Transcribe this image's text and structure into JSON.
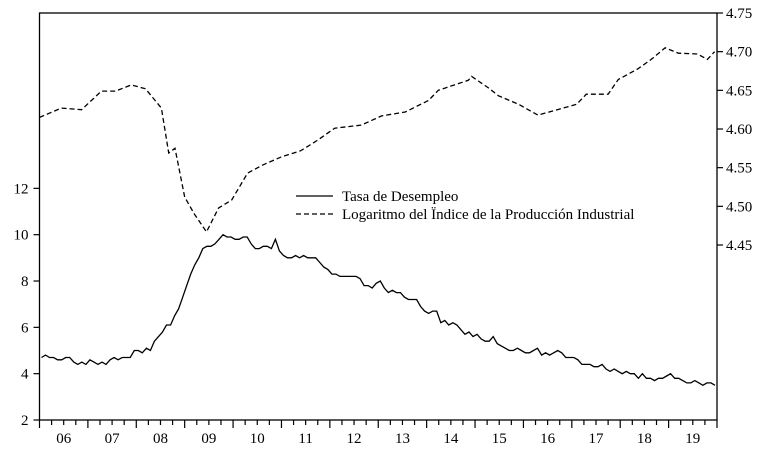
{
  "chart_data": {
    "type": "line",
    "title": "",
    "xlabel": "",
    "x_range": [
      2006.0,
      2020.0
    ],
    "x_tick_labels": [
      "06",
      "07",
      "08",
      "09",
      "10",
      "11",
      "12",
      "13",
      "14",
      "15",
      "16",
      "17",
      "18",
      "19"
    ],
    "left_axis": {
      "ylim": [
        2,
        19.57
      ],
      "ticks": [
        2,
        4,
        6,
        8,
        10,
        12
      ],
      "tick_labels": [
        "2",
        "4",
        "6",
        "8",
        "10",
        "12"
      ]
    },
    "right_axis": {
      "ylim": [
        4.2237,
        4.75
      ],
      "ticks": [
        4.45,
        4.5,
        4.55,
        4.6,
        4.65,
        4.7,
        4.75
      ],
      "tick_labels": [
        "4.45",
        "4.50",
        "4.55",
        "4.60",
        "4.65",
        "4.70",
        "4.75"
      ]
    },
    "legend_placement": "center-right",
    "series": [
      {
        "name": "Tasa de Desempleo",
        "axis": "left",
        "style": "solid",
        "frequency": "monthly",
        "start": 2006.0,
        "values": [
          4.7,
          4.8,
          4.7,
          4.7,
          4.6,
          4.6,
          4.7,
          4.7,
          4.5,
          4.4,
          4.5,
          4.4,
          4.6,
          4.5,
          4.4,
          4.5,
          4.4,
          4.6,
          4.7,
          4.6,
          4.7,
          4.7,
          4.7,
          5.0,
          5.0,
          4.9,
          5.1,
          5.0,
          5.4,
          5.6,
          5.8,
          6.1,
          6.1,
          6.5,
          6.8,
          7.3,
          7.8,
          8.3,
          8.7,
          9.0,
          9.4,
          9.5,
          9.5,
          9.6,
          9.8,
          10.0,
          9.9,
          9.9,
          9.8,
          9.8,
          9.9,
          9.9,
          9.6,
          9.4,
          9.4,
          9.5,
          9.5,
          9.4,
          9.8,
          9.3,
          9.1,
          9.0,
          9.0,
          9.1,
          9.0,
          9.1,
          9.0,
          9.0,
          9.0,
          8.8,
          8.6,
          8.5,
          8.3,
          8.3,
          8.2,
          8.2,
          8.2,
          8.2,
          8.2,
          8.1,
          7.8,
          7.8,
          7.7,
          7.9,
          8.0,
          7.7,
          7.5,
          7.6,
          7.5,
          7.5,
          7.3,
          7.2,
          7.2,
          7.2,
          6.9,
          6.7,
          6.6,
          6.7,
          6.7,
          6.2,
          6.3,
          6.1,
          6.2,
          6.1,
          5.9,
          5.7,
          5.8,
          5.6,
          5.7,
          5.5,
          5.4,
          5.4,
          5.6,
          5.3,
          5.2,
          5.1,
          5.0,
          5.0,
          5.1,
          5.0,
          4.9,
          4.9,
          5.0,
          5.1,
          4.8,
          4.9,
          4.8,
          4.9,
          5.0,
          4.9,
          4.7,
          4.7,
          4.7,
          4.6,
          4.4,
          4.4,
          4.4,
          4.3,
          4.3,
          4.4,
          4.2,
          4.1,
          4.2,
          4.1,
          4.0,
          4.1,
          4.0,
          4.0,
          3.8,
          4.0,
          3.8,
          3.8,
          3.7,
          3.8,
          3.8,
          3.9,
          4.0,
          3.8,
          3.8,
          3.7,
          3.6,
          3.6,
          3.7,
          3.6,
          3.5,
          3.6,
          3.6,
          3.5
        ]
      },
      {
        "name": "Logaritmo del Ïndice de la Producción Industrial",
        "axis": "right",
        "style": "dashed",
        "points": [
          [
            2006.0,
            4.615
          ],
          [
            2006.45,
            4.627
          ],
          [
            2006.87,
            4.625
          ],
          [
            2007.28,
            4.649
          ],
          [
            2007.57,
            4.649
          ],
          [
            2007.9,
            4.657
          ],
          [
            2008.19,
            4.652
          ],
          [
            2008.52,
            4.627
          ],
          [
            2008.67,
            4.569
          ],
          [
            2008.8,
            4.575
          ],
          [
            2009.0,
            4.512
          ],
          [
            2009.2,
            4.49
          ],
          [
            2009.45,
            4.467
          ],
          [
            2009.7,
            4.498
          ],
          [
            2009.97,
            4.508
          ],
          [
            2010.3,
            4.543
          ],
          [
            2010.6,
            4.553
          ],
          [
            2011.0,
            4.564
          ],
          [
            2011.4,
            4.572
          ],
          [
            2011.76,
            4.586
          ],
          [
            2012.1,
            4.601
          ],
          [
            2012.65,
            4.605
          ],
          [
            2013.07,
            4.617
          ],
          [
            2013.56,
            4.622
          ],
          [
            2014.04,
            4.637
          ],
          [
            2014.24,
            4.65
          ],
          [
            2014.86,
            4.663
          ],
          [
            2014.93,
            4.668
          ],
          [
            2015.28,
            4.653
          ],
          [
            2015.48,
            4.643
          ],
          [
            2015.9,
            4.632
          ],
          [
            2016.3,
            4.618
          ],
          [
            2016.7,
            4.625
          ],
          [
            2017.1,
            4.632
          ],
          [
            2017.3,
            4.645
          ],
          [
            2017.75,
            4.645
          ],
          [
            2017.96,
            4.664
          ],
          [
            2018.37,
            4.678
          ],
          [
            2018.64,
            4.69
          ],
          [
            2018.93,
            4.705
          ],
          [
            2019.2,
            4.698
          ],
          [
            2019.6,
            4.697
          ],
          [
            2019.8,
            4.69
          ],
          [
            2019.95,
            4.7
          ]
        ]
      }
    ]
  }
}
